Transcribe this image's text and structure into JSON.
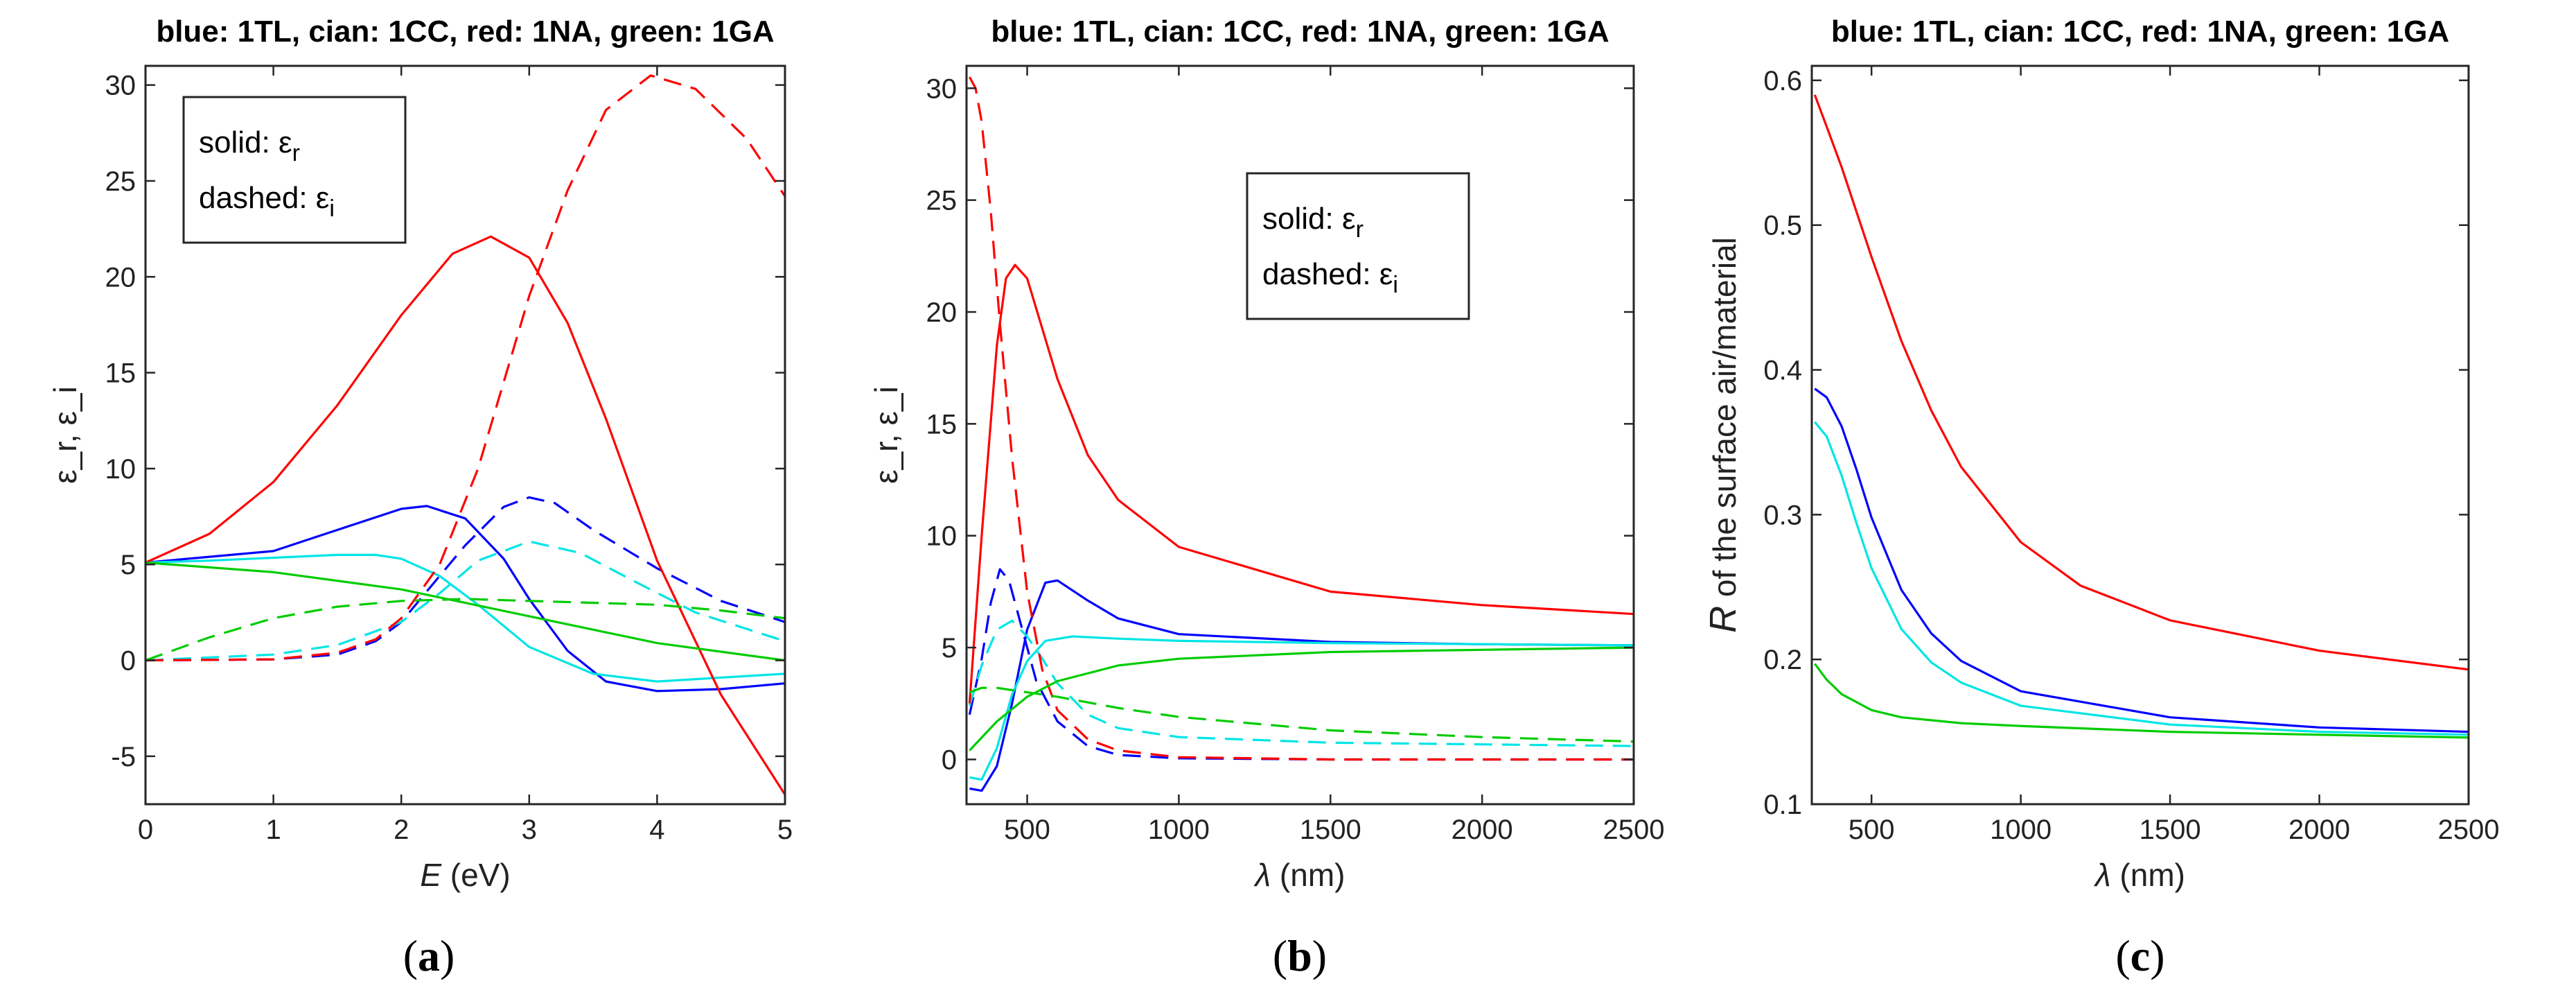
{
  "chart_data": [
    {
      "type": "line",
      "panel": "a",
      "caption_letter": "a",
      "title": "blue: 1TL, cian: 1CC, red: 1NA, green: 1GA",
      "xlabel_var": "E",
      "xlabel_unit": " (eV)",
      "ylabel": "ε_r, ε_i",
      "xlim": [
        0,
        5
      ],
      "ylim": [
        -7.5,
        31
      ],
      "xticks": [
        0,
        1,
        2,
        3,
        4,
        5
      ],
      "xtick_labels": [
        "0",
        "1",
        "2",
        "3",
        "4",
        "5"
      ],
      "yticks": [
        -5,
        0,
        5,
        10,
        15,
        20,
        25,
        30
      ],
      "ytick_labels": [
        "-5",
        "0",
        "5",
        "10",
        "15",
        "20",
        "25",
        "30"
      ],
      "legend": {
        "position": "top-left",
        "solid": "solid: ε",
        "solid_sub": "r",
        "dashed": "dashed: ε",
        "dashed_sub": "i"
      },
      "series": [
        {
          "name": "1TL ε_r",
          "color": "#0000ff",
          "dash": false,
          "x": [
            0,
            1,
            1.5,
            2,
            2.2,
            2.5,
            2.8,
            3,
            3.3,
            3.6,
            4,
            4.5,
            5
          ],
          "y": [
            5.1,
            5.7,
            6.8,
            7.9,
            8.05,
            7.4,
            5.3,
            3.2,
            0.5,
            -1.1,
            -1.6,
            -1.5,
            -1.2
          ]
        },
        {
          "name": "1TL ε_i",
          "color": "#0000ff",
          "dash": true,
          "x": [
            0,
            1,
            1.5,
            1.8,
            2,
            2.2,
            2.5,
            2.8,
            3,
            3.2,
            3.5,
            4,
            4.5,
            5
          ],
          "y": [
            0,
            0.05,
            0.3,
            1.0,
            2.0,
            3.6,
            6.0,
            8.0,
            8.5,
            8.2,
            6.8,
            4.8,
            3.1,
            2.0
          ]
        },
        {
          "name": "1CC ε_r",
          "color": "#00e5e5",
          "dash": false,
          "x": [
            0,
            0.5,
            1,
            1.5,
            1.8,
            2,
            2.3,
            2.6,
            3,
            3.5,
            4,
            4.5,
            5
          ],
          "y": [
            5.1,
            5.2,
            5.35,
            5.5,
            5.5,
            5.3,
            4.4,
            2.9,
            0.7,
            -0.7,
            -1.1,
            -0.9,
            -0.7
          ]
        },
        {
          "name": "1CC ε_i",
          "color": "#00e5e5",
          "dash": true,
          "x": [
            0,
            1,
            1.5,
            2,
            2.3,
            2.6,
            3,
            3.4,
            3.8,
            4.3,
            5
          ],
          "y": [
            0,
            0.3,
            0.8,
            2.0,
            3.5,
            5.2,
            6.2,
            5.6,
            4.2,
            2.5,
            1.0
          ]
        },
        {
          "name": "1NA ε_r",
          "color": "#ff0000",
          "dash": false,
          "x": [
            0,
            0.5,
            1,
            1.5,
            2,
            2.4,
            2.7,
            3,
            3.3,
            3.6,
            4,
            4.5,
            5
          ],
          "y": [
            5.1,
            6.6,
            9.3,
            13.3,
            18.0,
            21.2,
            22.1,
            21.0,
            17.6,
            12.6,
            5.2,
            -1.8,
            -7.0
          ]
        },
        {
          "name": "1NA ε_i",
          "color": "#ff0000",
          "dash": true,
          "x": [
            0,
            1,
            1.5,
            1.8,
            2,
            2.3,
            2.6,
            3,
            3.3,
            3.6,
            3.95,
            4.3,
            4.7,
            5
          ],
          "y": [
            0,
            0.05,
            0.4,
            1.1,
            2.2,
            5.0,
            10.0,
            19.0,
            24.5,
            28.7,
            30.5,
            29.8,
            27.2,
            24.2
          ]
        },
        {
          "name": "1GA ε_r",
          "color": "#00cc00",
          "dash": false,
          "x": [
            0,
            1,
            2,
            3,
            4,
            5
          ],
          "y": [
            5.1,
            4.6,
            3.7,
            2.3,
            0.9,
            0.0
          ]
        },
        {
          "name": "1GA ε_i",
          "color": "#00cc00",
          "dash": true,
          "x": [
            0,
            0.5,
            1,
            1.5,
            2,
            2.5,
            3,
            3.5,
            4,
            4.5,
            5
          ],
          "y": [
            0,
            1.2,
            2.2,
            2.8,
            3.1,
            3.2,
            3.1,
            3.0,
            2.9,
            2.6,
            2.2
          ]
        }
      ]
    },
    {
      "type": "line",
      "panel": "b",
      "caption_letter": "b",
      "title": "blue: 1TL, cian: 1CC, red: 1NA, green: 1GA",
      "xlabel_var": "λ",
      "xlabel_unit": " (nm)",
      "ylabel": "ε_r, ε_i",
      "xlim": [
        300,
        2500
      ],
      "ylim": [
        -2,
        31
      ],
      "xticks": [
        500,
        1000,
        1500,
        2000,
        2500
      ],
      "xtick_labels": [
        "500",
        "1000",
        "1500",
        "2000",
        "2500"
      ],
      "yticks": [
        0,
        5,
        10,
        15,
        20,
        25,
        30
      ],
      "ytick_labels": [
        "0",
        "5",
        "10",
        "15",
        "20",
        "25",
        "30"
      ],
      "legend": {
        "position": "top-center",
        "solid": "solid: ε",
        "solid_sub": "r",
        "dashed": "dashed: ε",
        "dashed_sub": "i"
      },
      "series": [
        {
          "name": "1TL ε_r",
          "color": "#0000ff",
          "dash": false,
          "x": [
            310,
            350,
            400,
            450,
            500,
            560,
            600,
            700,
            800,
            1000,
            1500,
            2000,
            2500
          ],
          "y": [
            -1.3,
            -1.4,
            -0.3,
            2.5,
            5.8,
            7.9,
            8.0,
            7.1,
            6.3,
            5.6,
            5.25,
            5.15,
            5.1
          ]
        },
        {
          "name": "1TL ε_i",
          "color": "#0000ff",
          "dash": true,
          "x": [
            310,
            350,
            380,
            410,
            440,
            480,
            530,
            600,
            700,
            800,
            1000,
            1500,
            2500
          ],
          "y": [
            2.0,
            4.5,
            7.0,
            8.5,
            8.0,
            6.0,
            3.5,
            1.7,
            0.6,
            0.2,
            0.05,
            0,
            0
          ]
        },
        {
          "name": "1CC ε_r",
          "color": "#00e5e5",
          "dash": false,
          "x": [
            310,
            350,
            400,
            450,
            500,
            560,
            650,
            800,
            1000,
            1500,
            2500
          ],
          "y": [
            -0.8,
            -0.9,
            0.5,
            2.9,
            4.4,
            5.3,
            5.5,
            5.4,
            5.3,
            5.2,
            5.1
          ]
        },
        {
          "name": "1CC ε_i",
          "color": "#00e5e5",
          "dash": true,
          "x": [
            310,
            350,
            400,
            450,
            500,
            550,
            600,
            700,
            800,
            1000,
            1500,
            2500
          ],
          "y": [
            2.4,
            4.2,
            5.8,
            6.2,
            5.5,
            4.5,
            3.4,
            2.0,
            1.4,
            1.0,
            0.75,
            0.6
          ]
        },
        {
          "name": "1NA ε_r",
          "color": "#ff0000",
          "dash": false,
          "x": [
            310,
            350,
            400,
            430,
            460,
            500,
            600,
            700,
            800,
            1000,
            1500,
            2000,
            2500
          ],
          "y": [
            2.5,
            10.0,
            18.5,
            21.5,
            22.1,
            21.5,
            17.0,
            13.6,
            11.6,
            9.5,
            7.5,
            6.9,
            6.5
          ]
        },
        {
          "name": "1NA ε_i",
          "color": "#ff0000",
          "dash": true,
          "x": [
            310,
            330,
            350,
            380,
            410,
            450,
            500,
            550,
            600,
            700,
            800,
            1000,
            1500,
            2500
          ],
          "y": [
            30.5,
            30.0,
            28.5,
            24.5,
            19.5,
            13.5,
            7.5,
            4.0,
            2.2,
            0.9,
            0.4,
            0.1,
            0,
            0
          ]
        },
        {
          "name": "1GA ε_r",
          "color": "#00cc00",
          "dash": false,
          "x": [
            310,
            400,
            500,
            600,
            800,
            1000,
            1500,
            2000,
            2500
          ],
          "y": [
            0.4,
            1.7,
            2.8,
            3.5,
            4.2,
            4.5,
            4.8,
            4.9,
            5.0
          ]
        },
        {
          "name": "1GA ε_i",
          "color": "#00cc00",
          "dash": true,
          "x": [
            310,
            350,
            400,
            450,
            500,
            600,
            800,
            1000,
            1500,
            2000,
            2500
          ],
          "y": [
            3.0,
            3.2,
            3.2,
            3.1,
            3.0,
            2.8,
            2.3,
            1.9,
            1.3,
            1.0,
            0.8
          ]
        }
      ]
    },
    {
      "type": "line",
      "panel": "c",
      "caption_letter": "c",
      "title": "blue: 1TL, cian: 1CC, red: 1NA, green: 1GA",
      "xlabel_var": "λ",
      "xlabel_unit": " (nm)",
      "ylabel_var": "R",
      "ylabel_rest": " of the surface air/material",
      "xlim": [
        300,
        2500
      ],
      "ylim": [
        0.1,
        0.61
      ],
      "xticks": [
        500,
        1000,
        1500,
        2000,
        2500
      ],
      "xtick_labels": [
        "500",
        "1000",
        "1500",
        "2000",
        "2500"
      ],
      "yticks": [
        0.1,
        0.2,
        0.3,
        0.4,
        0.5,
        0.6
      ],
      "ytick_labels": [
        "0.1",
        "0.2",
        "0.3",
        "0.4",
        "0.5",
        "0.6"
      ],
      "series": [
        {
          "name": "1TL R",
          "color": "#0000ff",
          "dash": false,
          "x": [
            310,
            350,
            400,
            450,
            500,
            600,
            700,
            800,
            1000,
            1500,
            2000,
            2500
          ],
          "y": [
            0.387,
            0.381,
            0.361,
            0.331,
            0.298,
            0.248,
            0.218,
            0.199,
            0.178,
            0.16,
            0.153,
            0.15
          ]
        },
        {
          "name": "1CC R",
          "color": "#00e5e5",
          "dash": false,
          "x": [
            310,
            350,
            400,
            450,
            500,
            600,
            700,
            800,
            1000,
            1500,
            2000,
            2500
          ],
          "y": [
            0.364,
            0.354,
            0.327,
            0.294,
            0.263,
            0.221,
            0.198,
            0.184,
            0.168,
            0.155,
            0.15,
            0.148
          ]
        },
        {
          "name": "1NA R",
          "color": "#ff0000",
          "dash": false,
          "x": [
            310,
            350,
            400,
            500,
            600,
            700,
            800,
            1000,
            1200,
            1500,
            2000,
            2500
          ],
          "y": [
            0.59,
            0.568,
            0.54,
            0.478,
            0.42,
            0.372,
            0.333,
            0.281,
            0.251,
            0.227,
            0.206,
            0.193
          ]
        },
        {
          "name": "1GA R",
          "color": "#00cc00",
          "dash": false,
          "x": [
            310,
            350,
            400,
            500,
            600,
            800,
            1000,
            1500,
            2000,
            2500
          ],
          "y": [
            0.197,
            0.186,
            0.176,
            0.165,
            0.16,
            0.156,
            0.154,
            0.15,
            0.148,
            0.146
          ]
        }
      ]
    }
  ]
}
